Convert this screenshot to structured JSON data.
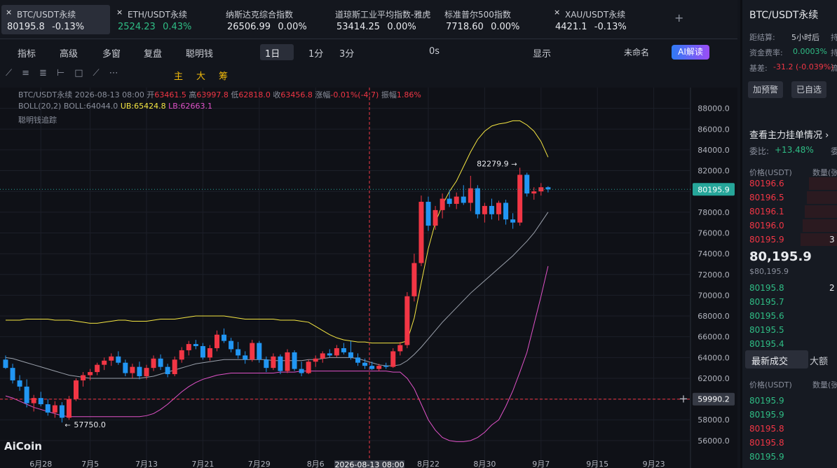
{
  "tabs": [
    {
      "name": "BTC/USDT永续",
      "price": "80195.8",
      "change": "-0.13%"
    },
    {
      "name": "ETH/USDT永续",
      "price": "2524.23",
      "change": "0.43%"
    },
    {
      "name": "纳斯达克综合指数",
      "price": "26506.99",
      "change": "0.00%"
    },
    {
      "name": "道琼斯工业平均指数-雅虎",
      "price": "53414.25",
      "change": "0.00%"
    },
    {
      "name": "标准普尔500指数",
      "price": "7718.60",
      "change": "0.00%"
    },
    {
      "name": "XAU/USDT永续",
      "price": "4421.1",
      "change": "-0.13%"
    }
  ],
  "toolbar": {
    "indicators": "指标",
    "advanced": "高级",
    "multi": "多窗",
    "replay": "复盘",
    "smart": "聪明钱",
    "interval": "1日",
    "i1": "1分",
    "i2": "3分",
    "timer": "0s",
    "display": "显示",
    "layout": "未命名",
    "ai": "AI解读"
  },
  "tools": {
    "main": "主",
    "big": "大",
    "chips": "筹"
  },
  "legend": {
    "symbol": "BTC/USDT永续",
    "time": "2026-08-13 08:00",
    "open_label": "开",
    "open": "63461.5",
    "high_label": "高",
    "high": "63997.8",
    "low_label": "低",
    "low": "62818.0",
    "close_label": "收",
    "close": "63456.8",
    "chg_label": "涨幅",
    "chg": "-0.01%(-4.7)",
    "amp_label": "振幅",
    "amp": "1.86%",
    "boll": "BOLL(20,2)",
    "boll_mid": "BOLL:64044.0",
    "boll_ub": "UB:65424.8",
    "boll_lb": "LB:62663.1",
    "smart": "聪明钱追踪"
  },
  "chart": {
    "ylim": [
      53900,
      90000
    ],
    "yticks": [
      {
        "value": 88000,
        "label": "88000.0"
      },
      {
        "value": 86000,
        "label": "86000.0"
      },
      {
        "value": 84000,
        "label": "84000.0"
      },
      {
        "value": 82000,
        "label": "82000.0"
      },
      {
        "value": 80000,
        "label": "80000.0"
      },
      {
        "value": 78000,
        "label": "78000.0"
      },
      {
        "value": 76000,
        "label": "76000.0"
      },
      {
        "value": 74000,
        "label": "74000.0"
      },
      {
        "value": 72000,
        "label": "72000.0"
      },
      {
        "value": 70000,
        "label": "70000.0"
      },
      {
        "value": 68000,
        "label": "68000.0"
      },
      {
        "value": 66000,
        "label": "66000.0"
      },
      {
        "value": 64000,
        "label": "64000.0"
      },
      {
        "value": 62000,
        "label": "62000.0"
      },
      {
        "value": 60000,
        "label": "60000.0"
      },
      {
        "value": 58000,
        "label": "58000.0"
      },
      {
        "value": 56000,
        "label": "56000.0"
      }
    ],
    "dates": [
      null,
      null,
      null,
      null,
      null,
      "6月28",
      null,
      null,
      null,
      null,
      null,
      null,
      "7月5",
      null,
      null,
      null,
      null,
      null,
      null,
      null,
      "7月13",
      null,
      null,
      null,
      null,
      null,
      null,
      null,
      "7月21",
      null,
      null,
      null,
      null,
      null,
      null,
      null,
      "7月29",
      null,
      null,
      null,
      null,
      null,
      null,
      null,
      "8月6",
      null,
      null,
      null,
      null,
      null,
      null,
      null,
      null,
      null,
      null,
      null,
      null,
      null,
      null,
      null,
      "8月22",
      null,
      null,
      null,
      null,
      null,
      null,
      null,
      "8月30",
      null,
      null,
      null,
      null,
      null,
      null,
      null,
      "9月7",
      null,
      null,
      null,
      null,
      null,
      null,
      null,
      "9月15",
      null,
      null,
      null,
      null,
      null,
      null,
      null,
      "9月23",
      null,
      null,
      null,
      null,
      null
    ],
    "candles": [
      [
        63800,
        64200,
        62900,
        63000
      ],
      [
        63000,
        63400,
        61500,
        61800
      ],
      [
        61800,
        62300,
        60800,
        61200
      ],
      [
        61200,
        61900,
        59200,
        59600
      ],
      [
        59600,
        60400,
        58800,
        60100
      ],
      [
        60100,
        60700,
        59300,
        59500
      ],
      [
        59500,
        60000,
        58400,
        58700
      ],
      [
        58700,
        59800,
        58200,
        59400
      ],
      [
        59400,
        59700,
        57750,
        58200
      ],
      [
        58200,
        60300,
        58000,
        60000
      ],
      [
        60000,
        62000,
        59800,
        61800
      ],
      [
        61800,
        62600,
        61200,
        62300
      ],
      [
        62300,
        62900,
        61800,
        62600
      ],
      [
        62600,
        63500,
        62300,
        63300
      ],
      [
        63300,
        64000,
        62800,
        63700
      ],
      [
        63700,
        64400,
        63200,
        64100
      ],
      [
        64100,
        64600,
        63300,
        63500
      ],
      [
        63500,
        63800,
        62200,
        62500
      ],
      [
        62500,
        63400,
        62000,
        63100
      ],
      [
        63100,
        63600,
        61900,
        62200
      ],
      [
        62200,
        63300,
        61900,
        63000
      ],
      [
        63000,
        64200,
        62700,
        63900
      ],
      [
        63900,
        64300,
        62800,
        63100
      ],
      [
        63100,
        63400,
        62100,
        62400
      ],
      [
        62400,
        64100,
        62200,
        63800
      ],
      [
        63800,
        65000,
        63500,
        64700
      ],
      [
        64700,
        65600,
        64200,
        65300
      ],
      [
        65300,
        65700,
        64800,
        65100
      ],
      [
        65100,
        65400,
        63800,
        64000
      ],
      [
        64000,
        65200,
        63700,
        64900
      ],
      [
        64900,
        66600,
        64600,
        66200
      ],
      [
        66200,
        66800,
        65400,
        65600
      ],
      [
        65600,
        65900,
        64500,
        64800
      ],
      [
        64800,
        65500,
        63900,
        64200
      ],
      [
        64200,
        64600,
        63400,
        63800
      ],
      [
        63800,
        65700,
        63600,
        65400
      ],
      [
        65400,
        65600,
        63500,
        63800
      ],
      [
        63800,
        64100,
        62600,
        63000
      ],
      [
        63000,
        64400,
        62800,
        64100
      ],
      [
        64100,
        64300,
        62400,
        62700
      ],
      [
        62700,
        64800,
        62500,
        64500
      ],
      [
        64500,
        64700,
        62700,
        62900
      ],
      [
        62900,
        63600,
        62200,
        62500
      ],
      [
        62500,
        63800,
        62400,
        63600
      ],
      [
        63600,
        64200,
        63100,
        63900
      ],
      [
        63900,
        64600,
        63500,
        64400
      ],
      [
        64400,
        64800,
        64000,
        64200
      ],
      [
        64200,
        65200,
        64000,
        64900
      ],
      [
        64900,
        65400,
        64300,
        64500
      ],
      [
        64500,
        65600,
        63800,
        64000
      ],
      [
        64000,
        64400,
        63200,
        63500
      ],
      [
        63500,
        63900,
        62900,
        63200
      ],
      [
        63200,
        63600,
        62800,
        62900
      ],
      [
        62900,
        63400,
        62700,
        63200
      ],
      [
        63200,
        63500,
        62900,
        63100
      ],
      [
        63100,
        64900,
        63000,
        64600
      ],
      [
        64600,
        65500,
        64200,
        65200
      ],
      [
        65200,
        70300,
        64900,
        69900
      ],
      [
        69900,
        74000,
        69400,
        73100
      ],
      [
        73100,
        79600,
        72800,
        79000
      ],
      [
        79000,
        79500,
        76200,
        76700
      ],
      [
        76700,
        78600,
        76300,
        78200
      ],
      [
        78200,
        79800,
        77400,
        79300
      ],
      [
        79300,
        80100,
        78500,
        78800
      ],
      [
        78800,
        79900,
        78300,
        79500
      ],
      [
        79500,
        80600,
        78700,
        78900
      ],
      [
        78900,
        81500,
        78100,
        80300
      ],
      [
        80300,
        80600,
        77400,
        77800
      ],
      [
        77800,
        78900,
        77000,
        78600
      ],
      [
        78600,
        79300,
        77300,
        77800
      ],
      [
        77800,
        79100,
        77200,
        78900
      ],
      [
        78900,
        79200,
        76800,
        77300
      ],
      [
        77300,
        77900,
        76400,
        77000
      ],
      [
        77000,
        82279.9,
        76700,
        81600
      ],
      [
        81600,
        81800,
        79500,
        79800
      ],
      [
        79800,
        80400,
        79200,
        80000
      ],
      [
        80000,
        80800,
        79600,
        80400
      ],
      [
        80400,
        80500,
        79900,
        80195.9
      ],
      null,
      null,
      null,
      null,
      null,
      null,
      null,
      null,
      null,
      null,
      null,
      null,
      null,
      null,
      null,
      null,
      null,
      null,
      null,
      null
    ],
    "boll": {
      "upper": [
        67600,
        67600,
        67600,
        67700,
        67700,
        67700,
        67700,
        67600,
        67600,
        67600,
        67500,
        67400,
        67300,
        67300,
        67400,
        67500,
        67600,
        67600,
        67500,
        67500,
        67500,
        67600,
        67700,
        67700,
        67700,
        67800,
        67900,
        68000,
        68000,
        68000,
        68000,
        68000,
        67900,
        67800,
        67700,
        67700,
        67700,
        67700,
        67700,
        67600,
        67600,
        67600,
        67500,
        67400,
        67000,
        66600,
        66200,
        65900,
        65700,
        65600,
        65500,
        65500,
        65400,
        65400,
        65400,
        65400,
        65400,
        65600,
        67800,
        71200,
        74500,
        77000,
        78700,
        80000,
        81000,
        82400,
        83800,
        85000,
        85800,
        86300,
        86500,
        86600,
        86800,
        86800,
        86400,
        85800,
        84800,
        83300,
        null,
        null,
        null,
        null,
        null,
        null,
        null,
        null,
        null,
        null,
        null,
        null,
        null,
        null,
        null,
        null,
        null,
        null,
        null,
        null
      ],
      "mid": [
        64000,
        63900,
        63700,
        63500,
        63300,
        63100,
        62900,
        62700,
        62500,
        62300,
        62200,
        62100,
        62000,
        62000,
        62000,
        62000,
        62000,
        62000,
        62000,
        62000,
        62100,
        62200,
        62400,
        62600,
        62800,
        63000,
        63200,
        63400,
        63500,
        63600,
        63700,
        63800,
        63800,
        63800,
        63800,
        63800,
        63800,
        63800,
        63700,
        63700,
        63700,
        63700,
        63700,
        63800,
        63800,
        63900,
        64000,
        64000,
        64000,
        64000,
        63900,
        63700,
        63500,
        63300,
        63200,
        63200,
        63300,
        63700,
        64300,
        65000,
        65800,
        66600,
        67400,
        68100,
        68800,
        69500,
        70200,
        70800,
        71400,
        72000,
        72600,
        73200,
        73800,
        74500,
        75200,
        76000,
        77000,
        78000,
        null,
        null,
        null,
        null,
        null,
        null,
        null,
        null,
        null,
        null,
        null,
        null,
        null,
        null,
        null,
        null,
        null,
        null,
        null,
        null
      ],
      "lower": [
        60300,
        60100,
        59800,
        59500,
        59200,
        59000,
        58800,
        58600,
        58400,
        58300,
        58300,
        58300,
        58300,
        58300,
        58300,
        58300,
        58300,
        58300,
        58300,
        58300,
        58400,
        58600,
        59000,
        59500,
        60100,
        60700,
        61200,
        61600,
        61900,
        62100,
        62300,
        62400,
        62500,
        62500,
        62500,
        62500,
        62500,
        62500,
        62500,
        62600,
        62600,
        62600,
        62700,
        62700,
        62700,
        62700,
        62700,
        62700,
        62700,
        62700,
        62700,
        62700,
        62700,
        62700,
        62700,
        62600,
        62600,
        62000,
        61000,
        59500,
        58000,
        57000,
        56300,
        56000,
        55900,
        55900,
        56000,
        56300,
        56800,
        57500,
        58000,
        59300,
        60800,
        62600,
        64500,
        67200,
        69900,
        72800,
        null,
        null,
        null,
        null,
        null,
        null,
        null,
        null,
        null,
        null,
        null,
        null,
        null,
        null,
        null,
        null,
        null,
        null,
        null,
        null
      ]
    },
    "high_note": 82279.9,
    "low_note": {
      "value": 57750,
      "label": "57750.0"
    },
    "last_price": 80195.9,
    "cross_price": 59990.2,
    "cross_date": "2026-08-13 08:00",
    "watermark": "AiCoin"
  },
  "panel": {
    "title": "BTC/USDT永续",
    "settle_label": "距结算:",
    "settle": "5小时后",
    "settle_cut": "持",
    "funding_label": "资金费率:",
    "funding": "0.0003%",
    "funding_cut": "持",
    "basis_label": "基差:",
    "basis": "-31.2 (-0.039%)",
    "basis_cut": "流",
    "alert": "加预警",
    "fav": "已自选",
    "depth_link": "查看主力挂单情况 ›",
    "ratio_label": "委比:",
    "ratio": "+13.48%",
    "ratio_cut": "委",
    "price_head": "价格(USDT)",
    "qty_head": "数量(张",
    "asks": [
      [
        "80196.6",
        ""
      ],
      [
        "80196.5",
        ""
      ],
      [
        "80196.1",
        ""
      ],
      [
        "80196.0",
        ""
      ],
      [
        "80195.9",
        "3"
      ]
    ],
    "mid": "80,195.9",
    "mid_usd": "$80,195.9",
    "bids": [
      [
        "80195.8",
        "2"
      ],
      [
        "80195.7",
        ""
      ],
      [
        "80195.6",
        ""
      ],
      [
        "80195.5",
        ""
      ],
      [
        "80195.4",
        ""
      ]
    ],
    "trades_tab": "最新成交",
    "big_tab": "大额",
    "trade_price_head": "价格(USDT)",
    "trade_qty_head": "数量(张",
    "trades": [
      {
        "price": "80195.9",
        "side": "buy"
      },
      {
        "price": "80195.9",
        "side": "buy"
      },
      {
        "price": "80195.8",
        "side": "sell"
      },
      {
        "price": "80195.8",
        "side": "sell"
      },
      {
        "price": "80195.9",
        "side": "buy"
      }
    ]
  }
}
